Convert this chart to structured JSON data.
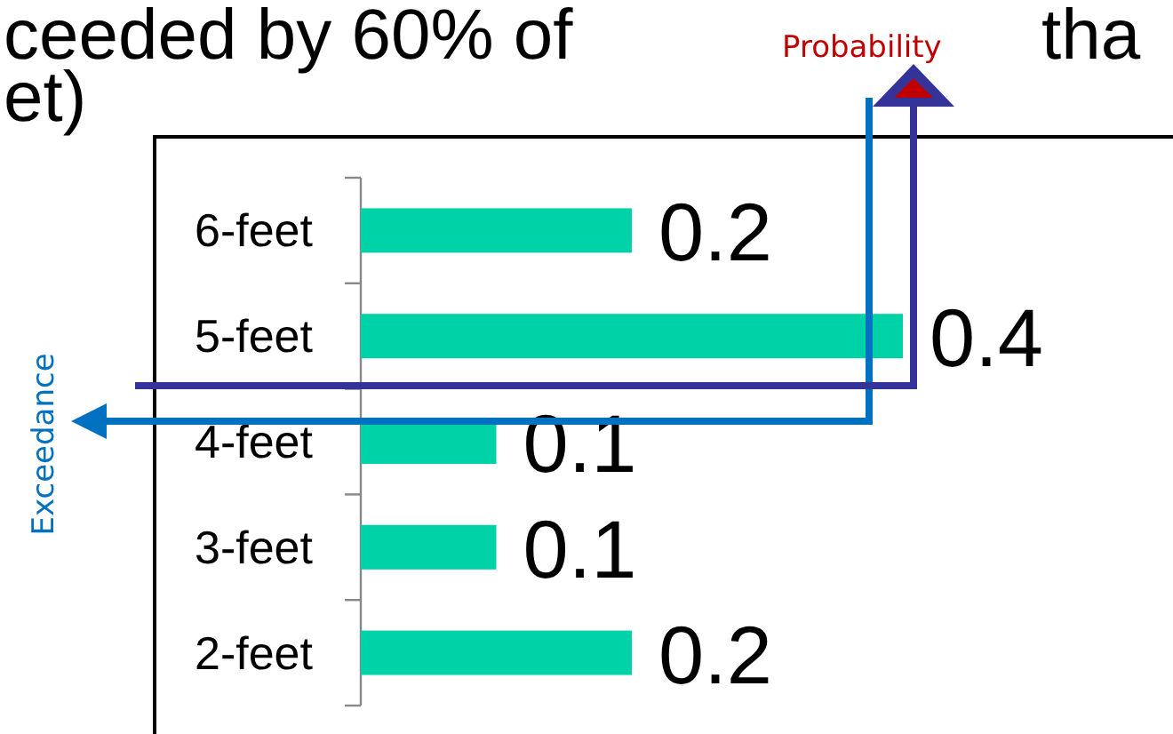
{
  "chart_data": {
    "type": "bar",
    "orientation": "horizontal",
    "xlim": [
      0,
      0.4
    ],
    "categories": [
      "6-feet",
      "5-feet",
      "4-feet",
      "3-feet",
      "2-feet"
    ],
    "values": [
      0.2,
      0.4,
      0.1,
      0.1,
      0.2
    ],
    "color": "#00d2a8",
    "data_labels": true,
    "grid": false,
    "annotations": [
      "ceeded by 60% of",
      "tha",
      "et)",
      "Probability",
      "Exceedance"
    ]
  }
}
